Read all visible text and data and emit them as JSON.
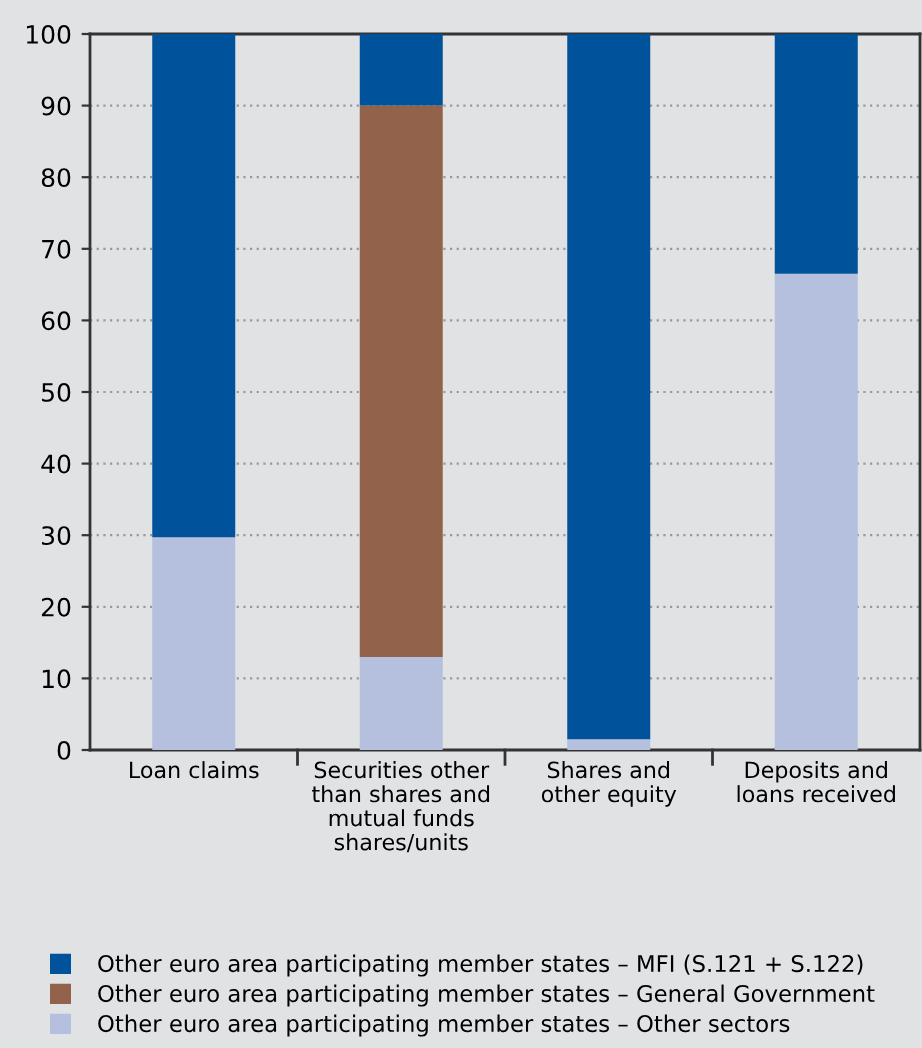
{
  "chart_data": {
    "type": "bar",
    "stacked": true,
    "categories": [
      "Loan claims",
      "Securities other\nthan shares and\nmutual funds\nshares/units",
      "Shares and\nother equity",
      "Deposits and\nloans received"
    ],
    "series": [
      {
        "name": "Other euro area participating member states – Other sectors",
        "color": "#b5bfde",
        "values": [
          29.7,
          13,
          1.5,
          66.5
        ]
      },
      {
        "name": "Other euro area participating member states – General Government",
        "color": "#93624a",
        "values": [
          null,
          77,
          null,
          null
        ]
      },
      {
        "name": "Other euro area participating member states – MFI (S.121 + S.122)",
        "color": "#00529b",
        "values": [
          70.3,
          10,
          98.5,
          33.5
        ]
      }
    ],
    "ylim": [
      0,
      100
    ],
    "yticks": [
      0,
      10,
      20,
      30,
      40,
      50,
      60,
      70,
      80,
      90,
      100
    ],
    "grid": "y",
    "legend": "bottom"
  }
}
